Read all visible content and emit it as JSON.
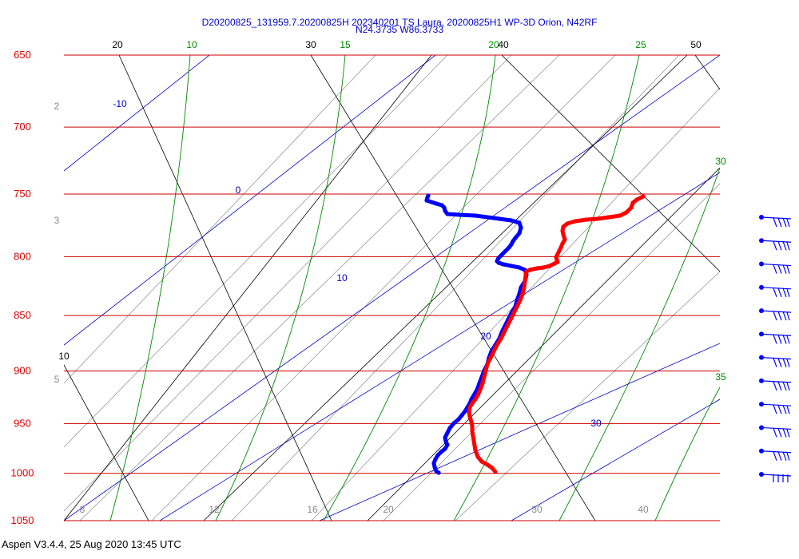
{
  "title": {
    "line1": "D20200825_131959.7.20200825H 202340201 TS Laura, 20200825H1 WP-3D Orion, N42RF",
    "line2": "N24.3735 W86.3733"
  },
  "footer": "Aspen V3.4.4, 25 Aug 2020  13:45 UTC",
  "colors": {
    "isobar": "#cc0000",
    "temperature": "#ff0000",
    "dewpoint": "#0000ff",
    "mixing_ratio": "#008800",
    "isotherm": "#0000cc",
    "adiabat": "#000000"
  },
  "chart_data": {
    "type": "line",
    "chart_kind": "skew-T log-P thermodynamic diagram",
    "pressure_levels": [
      "650",
      "700",
      "750",
      "800",
      "850",
      "900",
      "950",
      "1000",
      "1050"
    ],
    "pressure_values": [
      650,
      700,
      750,
      800,
      850,
      900,
      950,
      1000,
      1050
    ],
    "top_labels": [
      {
        "text": "20",
        "kind": "adiabat"
      },
      {
        "text": "10",
        "kind": "mixing_ratio"
      },
      {
        "text": "30",
        "kind": "adiabat"
      },
      {
        "text": "15",
        "kind": "mixing_ratio"
      },
      {
        "text": "20",
        "kind": "mixing_ratio"
      },
      {
        "text": "40",
        "kind": "adiabat"
      },
      {
        "text": "25",
        "kind": "mixing_ratio"
      },
      {
        "text": "50",
        "kind": "adiabat"
      }
    ],
    "right_labels": [
      {
        "text": "30",
        "kind": "mixing_ratio"
      },
      {
        "text": "35",
        "kind": "mixing_ratio"
      }
    ],
    "left_labels": [
      {
        "text": "2",
        "kind": "gray"
      },
      {
        "text": "3",
        "kind": "gray"
      },
      {
        "text": "10",
        "kind": "adiabat"
      },
      {
        "text": "5",
        "kind": "gray"
      }
    ],
    "isotherm_labels": [
      "-10",
      "0",
      "10",
      "20",
      "30"
    ],
    "bottom_labels": [
      "8",
      "12",
      "16",
      "20",
      "30",
      "40"
    ],
    "dewpoint_profile": {
      "x": [
        536,
        535,
        534,
        546,
        553,
        556,
        557,
        560,
        575,
        595,
        610,
        625,
        640,
        650,
        652,
        650,
        645,
        642,
        640,
        637,
        632,
        628,
        624,
        622,
        624,
        630,
        640,
        650,
        657,
        659,
        657,
        652,
        650,
        647,
        645,
        640,
        636,
        632,
        628,
        625,
        620,
        615,
        612,
        610,
        606,
        603,
        600,
        597,
        593,
        590,
        588,
        585,
        582,
        578,
        574,
        568,
        563,
        560,
        557,
        558,
        560,
        557,
        552,
        548,
        545,
        543,
        544,
        546,
        549
      ],
      "y": [
        245,
        247,
        251,
        255,
        257,
        260,
        264,
        268,
        269,
        270,
        272,
        274,
        276,
        279,
        285,
        292,
        298,
        302,
        306,
        310,
        315,
        319,
        323,
        327,
        329,
        331,
        333,
        335,
        338,
        344,
        352,
        360,
        368,
        376,
        384,
        392,
        400,
        408,
        416,
        424,
        432,
        440,
        448,
        456,
        464,
        472,
        480,
        488,
        495,
        500,
        505,
        510,
        515,
        520,
        525,
        530,
        536,
        542,
        548,
        553,
        557,
        562,
        566,
        570,
        575,
        580,
        585,
        590,
        592
      ]
    },
    "temperature_profile": {
      "x": [
        805,
        797,
        792,
        790,
        784,
        776,
        762,
        748,
        734,
        720,
        710,
        705,
        704,
        705,
        707,
        704,
        702,
        700,
        698,
        696,
        697,
        698,
        694,
        688,
        680,
        672,
        663,
        659,
        658,
        657,
        656,
        654,
        651,
        647,
        643,
        639,
        635,
        631,
        627,
        622,
        618,
        614,
        610,
        608,
        606,
        604,
        601,
        598,
        595,
        591,
        588,
        587,
        588,
        590,
        591,
        591,
        592,
        593,
        594,
        595,
        598,
        603,
        610,
        616,
        620
      ],
      "y": [
        246,
        250,
        254,
        260,
        266,
        270,
        272,
        274,
        275,
        277,
        280,
        284,
        289,
        294,
        300,
        305,
        310,
        314,
        318,
        322,
        326,
        328,
        330,
        333,
        335,
        336,
        338,
        340,
        344,
        352,
        360,
        368,
        376,
        384,
        392,
        400,
        408,
        416,
        424,
        432,
        440,
        448,
        456,
        464,
        472,
        480,
        488,
        495,
        500,
        505,
        510,
        516,
        522,
        528,
        534,
        540,
        546,
        552,
        558,
        564,
        572,
        578,
        582,
        586,
        591
      ]
    },
    "wind_barbs_count": 12
  }
}
